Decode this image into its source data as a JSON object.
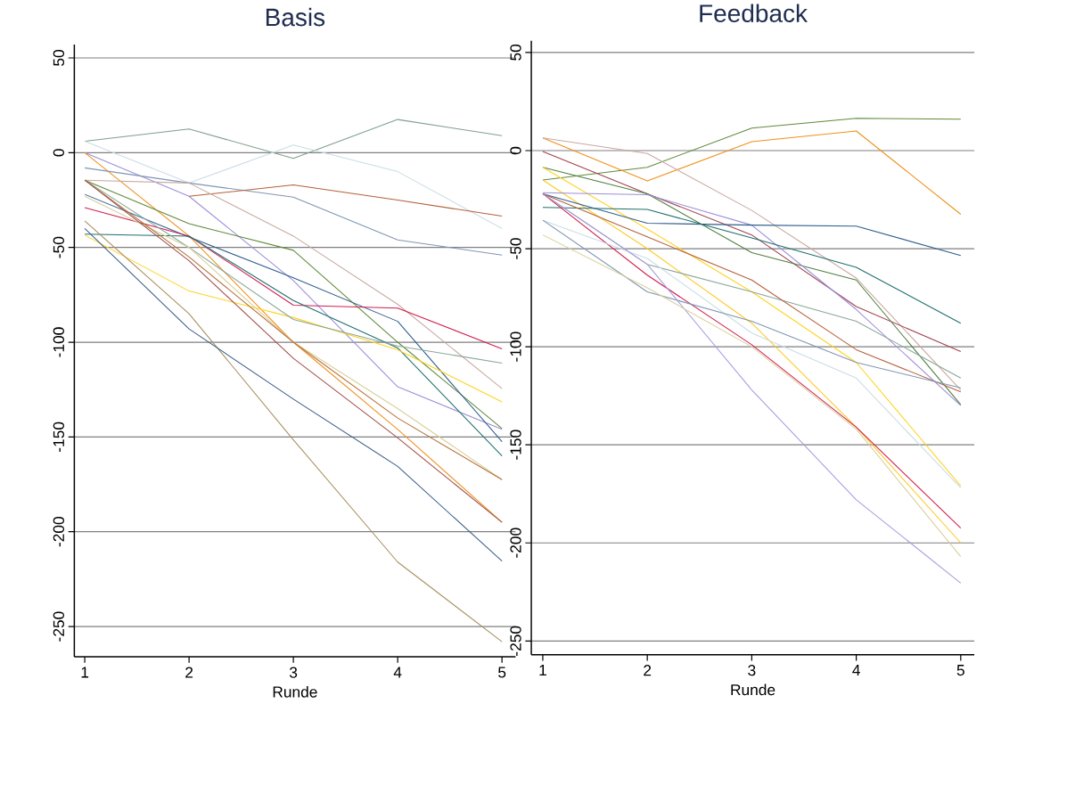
{
  "chart_data": [
    {
      "type": "line",
      "title": "Basis",
      "xlabel": "Runde",
      "x": [
        1,
        2,
        3,
        4,
        5
      ],
      "xlim": [
        0.9,
        5.13
      ],
      "ylim": [
        -266,
        57
      ],
      "xticks": [
        1,
        2,
        3,
        4,
        5
      ],
      "yticks": [
        -250,
        -200,
        -150,
        -100,
        -50,
        0,
        50
      ],
      "grid": "y",
      "series": [
        {
          "color": "#7f9f8f",
          "values": [
            6,
            12.5,
            -3,
            17.5,
            9
          ]
        },
        {
          "color": "#c9dde5",
          "values": [
            6,
            -16,
            4,
            -10,
            -40
          ]
        },
        {
          "color": "#9a8fd9",
          "values": [
            0,
            -23,
            -67.5,
            -123.5,
            -146
          ]
        },
        {
          "color": "#f0901a",
          "values": [
            0,
            -44,
            -100,
            -146,
            -195
          ]
        },
        {
          "color": "#7f96b4",
          "values": [
            -8,
            -16,
            -23.5,
            -46,
            -54
          ]
        },
        {
          "color": "#b5603a",
          "values": [
            null,
            -23,
            -17,
            -25,
            -33.5
          ]
        },
        {
          "color": "#c9a9a0",
          "values": [
            -14.5,
            -16,
            -44,
            -80,
            -124.5
          ]
        },
        {
          "color": "#5f8a3a",
          "values": [
            -14.5,
            -37.5,
            -51.5,
            -100,
            -145.5
          ]
        },
        {
          "color": "#2f5f8f",
          "values": [
            -22,
            -44.5,
            -66,
            -89,
            -152.5
          ]
        },
        {
          "color": "#d01f4f",
          "values": [
            -29,
            -44,
            -80.5,
            -82,
            -103.5
          ]
        },
        {
          "color": "#1f6f6f",
          "values": [
            -43,
            -44,
            -78,
            -103,
            -160
          ]
        },
        {
          "color": "#ffd21f",
          "values": [
            -43.5,
            -73,
            -87,
            -104,
            -131.5
          ]
        },
        {
          "color": "#8aa79a",
          "values": [
            -14.5,
            -50,
            -88,
            -102,
            -111
          ]
        },
        {
          "color": "#d9d09a",
          "values": [
            -23,
            -50,
            -100,
            -135,
            -172.5
          ]
        },
        {
          "color": "#b5703a",
          "values": [
            -14.5,
            -55,
            -100,
            -140,
            -172.5
          ]
        },
        {
          "color": "#a0504a",
          "values": [
            -14.5,
            -57,
            -108.5,
            -150.5,
            -195
          ]
        },
        {
          "color": "#a89060",
          "values": [
            -36,
            -85,
            -151.5,
            -216,
            -258
          ]
        },
        {
          "color": "#3a5f8a",
          "values": [
            -40,
            -93,
            -130,
            -165.5,
            -215.5
          ]
        }
      ]
    },
    {
      "type": "line",
      "title": "Feedback",
      "xlabel": "Runde",
      "x": [
        1,
        2,
        3,
        4,
        5
      ],
      "xlim": [
        0.89,
        5.13
      ],
      "ylim": [
        -257,
        56
      ],
      "xticks": [
        1,
        2,
        3,
        4,
        5
      ],
      "yticks": [
        -250,
        -200,
        -150,
        -100,
        -50,
        0,
        50
      ],
      "grid": "y",
      "series": [
        {
          "color": "#5f8a3a",
          "values": [
            -15,
            -8.5,
            11.5,
            16.5,
            16
          ]
        },
        {
          "color": "#f0901a",
          "values": [
            6.5,
            -15.5,
            4.5,
            10,
            -32.5
          ]
        },
        {
          "color": "#c9a9a0",
          "values": [
            6.5,
            -1.5,
            -30.5,
            -65,
            -122
          ]
        },
        {
          "color": "#a04050",
          "values": [
            -0.5,
            -22,
            -43,
            -79.5,
            -102.5
          ]
        },
        {
          "color": "#4f7f3f",
          "values": [
            -8.5,
            -22,
            -52,
            -66,
            -129.5
          ]
        },
        {
          "color": "#ffd21f",
          "values": [
            -8.5,
            -40,
            -72,
            -108,
            -171
          ]
        },
        {
          "color": "#ffc81f",
          "values": [
            -15,
            -50,
            -88,
            -141,
            -200
          ]
        },
        {
          "color": "#9a8fd9",
          "values": [
            -21.5,
            -22.5,
            -38,
            -81,
            -130
          ]
        },
        {
          "color": "#2f5f8f",
          "values": [
            -22,
            -37,
            -38,
            -38.5,
            -53.5
          ]
        },
        {
          "color": "#1f6f6f",
          "values": [
            -29,
            -30,
            -44.5,
            -59.5,
            -88
          ]
        },
        {
          "color": "#8aa79a",
          "values": [
            -22,
            -58,
            -72,
            -87,
            -116
          ]
        },
        {
          "color": "#b5603a",
          "values": [
            -22,
            -44,
            -66,
            -101.5,
            -123
          ]
        },
        {
          "color": "#d01f4f",
          "values": [
            -22,
            -63.5,
            -99,
            -141,
            -192.5
          ]
        },
        {
          "color": "#c9dde5",
          "values": [
            -35.5,
            -55,
            -93,
            -116,
            -172
          ]
        },
        {
          "color": "#7f96b4",
          "values": [
            -35.5,
            -72,
            -87,
            -108,
            -121
          ]
        },
        {
          "color": "#a99be0",
          "values": [
            -22,
            -58,
            -122,
            -178,
            -220.5
          ]
        },
        {
          "color": "#d9d09a",
          "values": [
            -43,
            -70,
            -100,
            -142,
            -207
          ]
        }
      ]
    }
  ]
}
